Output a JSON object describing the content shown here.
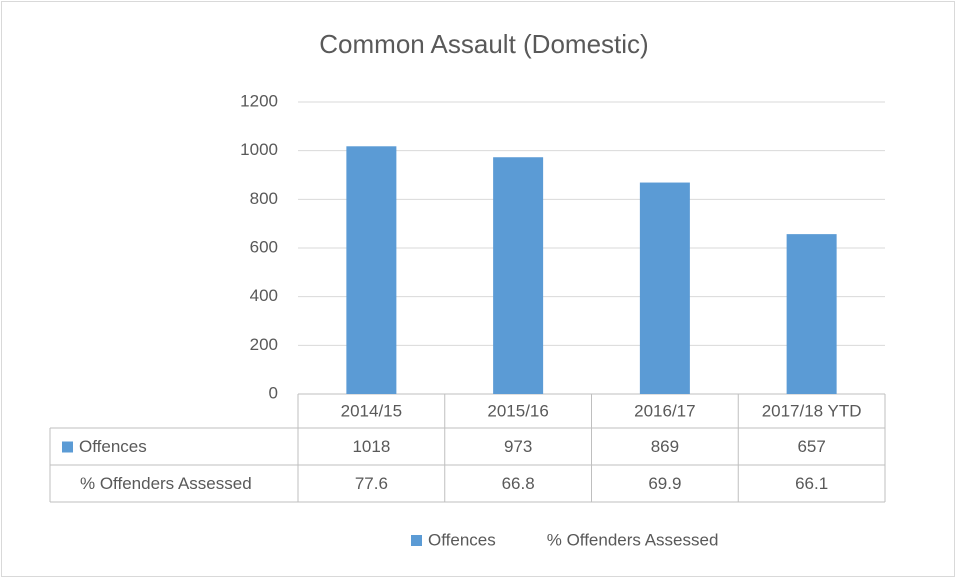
{
  "chart_data": {
    "type": "bar",
    "title": "Common Assault (Domestic)",
    "categories": [
      "2014/15",
      "2015/16",
      "2016/17",
      "2017/18 YTD"
    ],
    "series": [
      {
        "name": "Offences",
        "color": "#5b9bd5",
        "values": [
          1018,
          973,
          869,
          657
        ]
      },
      {
        "name": "% Offenders Assessed",
        "values": [
          77.6,
          66.8,
          69.9,
          66.1
        ]
      }
    ],
    "ylim": [
      0,
      1200
    ],
    "yticks": [
      0,
      200,
      400,
      600,
      800,
      1000,
      1200
    ],
    "grid": true,
    "legend": "bottom"
  }
}
